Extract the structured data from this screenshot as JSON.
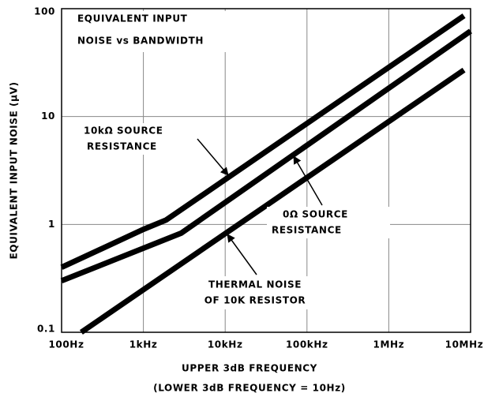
{
  "chart_data": {
    "type": "line",
    "title": [
      "EQUIVALENT INPUT",
      "NOISE vs BANDWIDTH"
    ],
    "x_label": [
      "UPPER 3dB FREQUENCY",
      "(LOWER 3dB FREQUENCY = 10Hz)"
    ],
    "y_label": "EQUIVALENT INPUT NOISE (µV)",
    "log_x": true,
    "log_y": true,
    "grid": true,
    "xlim": [
      100,
      10000000
    ],
    "ylim": [
      0.1,
      100
    ],
    "xticks": [
      {
        "value": 100,
        "label": "100Hz"
      },
      {
        "value": 1000,
        "label": "1kHz"
      },
      {
        "value": 10000,
        "label": "10kHz"
      },
      {
        "value": 100000,
        "label": "100kHz"
      },
      {
        "value": 1000000,
        "label": "1MHz"
      },
      {
        "value": 10000000,
        "label": "10MHz"
      }
    ],
    "yticks": [
      0.1,
      1,
      10,
      100
    ],
    "series": [
      {
        "color": "#000000",
        "x": [
          100,
          1000,
          1900,
          8300000
        ],
        "values": [
          0.4,
          0.9,
          1.1,
          86
        ]
      },
      {
        "color": "#000000",
        "x": [
          100,
          2900,
          10000000
        ],
        "values": [
          0.3,
          0.83,
          62
        ]
      },
      {
        "color": "#000000",
        "x": [
          174,
          8300000
        ],
        "values": [
          0.1,
          27
        ]
      }
    ],
    "annotations": [
      [
        "10kΩ SOURCE",
        "RESISTANCE"
      ],
      [
        "0Ω SOURCE",
        "RESISTANCE"
      ],
      [
        "THERMAL NOISE",
        "OF 10K RESISTOR"
      ]
    ]
  }
}
